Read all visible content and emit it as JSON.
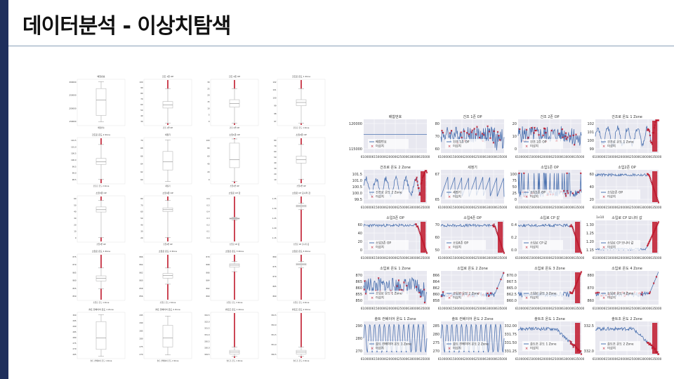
{
  "slide": {
    "title": "데이터분석 - 이상치탐색",
    "accent_color": "#1f2f5c",
    "rule_color": "#8aa0b8"
  },
  "colors": {
    "plot_bg": "#e8e8f0",
    "line": "#4c72b0",
    "outlier": "#c0182b",
    "box": "#bbbbbb"
  },
  "legend_labels": {
    "outlier": "이상치"
  },
  "boxplots": {
    "rows": [
      [
        {
          "title": "배합번호",
          "xlabel": "배합번호",
          "yticks": [
            "1300000",
            "1250000",
            "1200000",
            "1150000"
          ],
          "q": [
            0.08,
            0.22,
            0.55,
            0.8,
            0.95
          ],
          "tail": false
        },
        {
          "title": "건조 1존 OP",
          "xlabel": "건조 1존 OP",
          "yticks": [
            "100",
            "90",
            "80",
            "70",
            "60",
            "50",
            "40",
            "30"
          ],
          "q": [
            0.05,
            0.38,
            0.45,
            0.52,
            0.8
          ],
          "tail": true
        },
        {
          "title": "건조 2존 OP",
          "xlabel": "건조 2존 OP",
          "yticks": [
            "30",
            "25",
            "20",
            "15",
            "10",
            "5",
            "0"
          ],
          "q": [
            0.05,
            0.4,
            0.48,
            0.56,
            0.8
          ],
          "tail": true
        },
        {
          "title": "건조로 온도 1 Zone",
          "xlabel": "건조로 온도 1 Zone",
          "yticks": [
            "102",
            "101",
            "100",
            "99",
            "98",
            "97"
          ],
          "q": [
            0.05,
            0.43,
            0.5,
            0.56,
            0.8
          ],
          "tail": true
        }
      ],
      [
        {
          "title": "건조로 온도 2 Zone",
          "xlabel": "건조로 온도 2 Zone",
          "yticks": [
            "101.5",
            "101.0",
            "100.5",
            "100.0",
            "99.5",
            "99.0",
            "98.5"
          ],
          "q": [
            0.1,
            0.42,
            0.48,
            0.55,
            0.85
          ],
          "tail": true
        },
        {
          "title": "세정기",
          "xlabel": "세정기",
          "yticks": [
            "70",
            "68",
            "66",
            "64",
            "62",
            "60"
          ],
          "q": [
            0.05,
            0.3,
            0.48,
            0.7,
            0.95
          ],
          "tail": false
        },
        {
          "title": "소입1존 OP",
          "xlabel": "소입1존 OP",
          "yticks": [
            "100",
            "80",
            "60",
            "40",
            "20",
            "0"
          ],
          "q": [
            0.05,
            0.35,
            0.52,
            0.88,
            0.97
          ],
          "tail": true
        },
        {
          "title": "소입2존 OP",
          "xlabel": "소입2존 OP",
          "yticks": [
            "80",
            "70",
            "60",
            "50",
            "40",
            "30",
            "20",
            "10"
          ],
          "q": [
            0.1,
            0.45,
            0.52,
            0.6,
            0.85
          ],
          "tail": true
        }
      ],
      [
        {
          "title": "소입3존 OP",
          "xlabel": "소입3존 OP",
          "yticks": [
            "60",
            "50",
            "40",
            "30",
            "20",
            "10",
            "0"
          ],
          "q": [
            0.1,
            0.65,
            0.7,
            0.76,
            0.9
          ],
          "tail": true
        },
        {
          "title": "소입4존 OP",
          "xlabel": "소입4존 OP",
          "yticks": [
            "80",
            "70",
            "60",
            "50",
            "40",
            "30",
            "20"
          ],
          "q": [
            0.1,
            0.66,
            0.7,
            0.74,
            0.9
          ],
          "tail": true
        },
        {
          "title": "소입로 CP 값",
          "xlabel": "소입로 CP 값",
          "yticks": [
            "0.6",
            "0.5",
            "0.4",
            "0.3",
            "0.2",
            "0.1",
            "0.0"
          ],
          "q": [
            0.48,
            0.5,
            0.51,
            0.52,
            0.54
          ],
          "tail": true
        },
        {
          "title": "소입로 CP 모니터 값",
          "xlabel": "소입로 CP 모니터 값",
          "yticks": [
            "1.35",
            "1.30",
            "1.25",
            "1.20",
            "1.15"
          ],
          "q": [
            0.7,
            0.76,
            0.78,
            0.8,
            0.84
          ],
          "tail": true
        }
      ],
      [
        {
          "title": "소입로 온도 1 Zone",
          "xlabel": "소입로 온도 1 Zone",
          "yticks": [
            "875",
            "870",
            "865",
            "860",
            "855",
            "850"
          ],
          "q": [
            0.25,
            0.42,
            0.48,
            0.53,
            0.7
          ],
          "tail": true
        },
        {
          "title": "소입로 온도 2 Zone",
          "xlabel": "소입로 온도 2 Zone",
          "yticks": [
            "866",
            "864",
            "862",
            "860",
            "858",
            "856"
          ],
          "q": [
            0.35,
            0.48,
            0.54,
            0.58,
            0.7
          ],
          "tail": true
        },
        {
          "title": "소입로 온도 3 Zone",
          "xlabel": "소입로 온도 3 Zone",
          "yticks": [
            "870",
            "868",
            "866",
            "864",
            "862",
            "860"
          ],
          "q": [
            0.62,
            0.72,
            0.76,
            0.79,
            0.84
          ],
          "tail": true
        },
        {
          "title": "소입로 온도 4 Zone",
          "xlabel": "소입로 온도 4 Zone",
          "yticks": [
            "880",
            "875",
            "870",
            "865",
            "860"
          ],
          "q": [
            0.7,
            0.76,
            0.78,
            0.8,
            0.84
          ],
          "tail": true
        }
      ],
      [
        {
          "title": "솔트 컨베이어 온도 1 Zone",
          "xlabel": "솔트 컨베이어 온도 1 Zone",
          "yticks": [
            "300",
            "295",
            "290",
            "285",
            "280",
            "275",
            "270",
            "265"
          ],
          "q": [
            0.05,
            0.2,
            0.45,
            0.8,
            0.95
          ],
          "tail": false
        },
        {
          "title": "솔트 컨베이어 온도 2 Zone",
          "xlabel": "솔트 컨베이어 온도 2 Zone",
          "yticks": [
            "295",
            "290",
            "285",
            "280",
            "275",
            "270"
          ],
          "q": [
            0.08,
            0.25,
            0.45,
            0.72,
            0.92
          ],
          "tail": false
        },
        {
          "title": "솔트조 온도 1 Zone",
          "xlabel": "솔트조 온도 1 Zone",
          "yticks": [
            "332.5",
            "332.0",
            "331.5",
            "331.0",
            "330.5",
            "330.0",
            "329.5"
          ],
          "q": [
            0.05,
            0.1,
            0.14,
            0.18,
            0.25
          ],
          "tail": true
        },
        {
          "title": "솔트조 온도 2 Zone",
          "xlabel": "솔트조 온도 2 Zone",
          "yticks": [
            "332.5",
            "332.0",
            "331.5",
            "331.0",
            "330.5"
          ],
          "q": [
            0.05,
            0.1,
            0.14,
            0.18,
            0.25
          ],
          "tail": true
        }
      ]
    ]
  },
  "timeseries": {
    "xticks": [
      "6100006150000620000625000630000635000"
    ],
    "rows": [
      [
        {
          "title": "배합번호",
          "legend": "배합번호",
          "offset": "",
          "yticks": [
            "120000",
            "115000"
          ],
          "kind": "flat",
          "outliers": "none"
        },
        {
          "title": "건조 1존 OP",
          "legend": "건조 1존 OP",
          "offset": "",
          "yticks": [
            "80",
            "70",
            "60"
          ],
          "kind": "noisy",
          "outliers": "scatter"
        },
        {
          "title": "건조 2존 OP",
          "legend": "건조 2존 OP",
          "offset": "",
          "yticks": [
            "20",
            "10",
            "0"
          ],
          "kind": "noisy",
          "outliers": "scatter"
        },
        {
          "title": "건조로 온도 1 Zone",
          "legend": "건조로 온도 1 Zone",
          "offset": "",
          "yticks": [
            "102",
            "101",
            "100",
            "99"
          ],
          "kind": "wave",
          "outliers": "tail"
        }
      ],
      [
        {
          "title": "건조로 온도 2 Zone",
          "legend": "건조로 온도 2 Zone",
          "offset": "",
          "yticks": [
            "101.5",
            "101.0",
            "100.5",
            "100.0",
            "99.5"
          ],
          "kind": "wave",
          "outliers": "tail"
        },
        {
          "title": "세정기",
          "legend": "세정기",
          "offset": "",
          "yticks": [
            "67",
            "65"
          ],
          "kind": "saw",
          "outliers": "none"
        },
        {
          "title": "소입1존 OP",
          "legend": "소입1존 OP",
          "offset": "",
          "yticks": [
            "100",
            "75",
            "50",
            "25",
            "0"
          ],
          "kind": "spiky",
          "outliers": "scatter"
        },
        {
          "title": "소입2존 OP",
          "legend": "소입2존 OP",
          "offset": "",
          "yticks": [
            "60",
            "40",
            "20"
          ],
          "kind": "high",
          "outliers": "tail"
        }
      ],
      [
        {
          "title": "소입3존 OP",
          "legend": "소입3존 OP",
          "offset": "",
          "yticks": [
            "60",
            "40",
            "20",
            "0"
          ],
          "kind": "high",
          "outliers": "tail"
        },
        {
          "title": "소입4존 OP",
          "legend": "소입4존 OP",
          "offset": "",
          "yticks": [
            "70",
            "60",
            "50"
          ],
          "kind": "high",
          "outliers": "tail"
        },
        {
          "title": "소입로 CP 값",
          "legend": "소입로 CP 값",
          "offset": "",
          "yticks": [
            "0.4",
            "0.2",
            "0.0"
          ],
          "kind": "high",
          "outliers": "tail"
        },
        {
          "title": "소입로 CP 모니터 값",
          "legend": "소입로 CP 모니터 값",
          "offset": "1e10",
          "yticks": [
            "1.30",
            "1.25",
            "1.20",
            "1.15"
          ],
          "kind": "rise",
          "outliers": "tail"
        }
      ],
      [
        {
          "title": "소입로 온도 1 Zone",
          "legend": "소입로 온도 1 Zone",
          "offset": "",
          "yticks": [
            "870",
            "865",
            "860",
            "855",
            "850"
          ],
          "kind": "noisy",
          "outliers": "scatter"
        },
        {
          "title": "소입로 온도 2 Zone",
          "legend": "소입로 온도 2 Zone",
          "offset": "",
          "yticks": [
            "866",
            "864",
            "862",
            "860",
            "858"
          ],
          "kind": "lowrise",
          "outliers": "scatter"
        },
        {
          "title": "소입로 온도 3 Zone",
          "legend": "소입로 온도 3 Zone",
          "offset": "",
          "yticks": [
            "870.0",
            "867.5",
            "865.0",
            "862.5",
            "860.0"
          ],
          "kind": "lowrise",
          "outliers": "tail"
        },
        {
          "title": "소입로 온도 4 Zone",
          "legend": "소입로 온도 4 Zone",
          "offset": "",
          "yticks": [
            "880",
            "870",
            "860"
          ],
          "kind": "lowrise",
          "outliers": "scatter"
        }
      ],
      [
        {
          "title": "솔트 컨베이어 온도 1 Zone",
          "legend": "솔트 컨베이어 온도 1 Zone",
          "offset": "",
          "yticks": [
            "290",
            "280",
            "270"
          ],
          "kind": "sine",
          "outliers": "none"
        },
        {
          "title": "솔트 컨베이어 온도 2 Zone",
          "legend": "솔트 컨베이어 온도 2 Zone",
          "offset": "",
          "yticks": [
            "285",
            "280",
            "275",
            "270"
          ],
          "kind": "sine",
          "outliers": "none"
        },
        {
          "title": "솔트조 온도 1 Zone",
          "legend": "솔트조 온도 1 Zone",
          "offset": "",
          "yticks": [
            "332.00",
            "331.75",
            "331.50",
            "331.25"
          ],
          "kind": "fall",
          "outliers": "tail"
        },
        {
          "title": "솔트조 온도 2 Zone",
          "legend": "솔트조 온도 2 Zone",
          "offset": "",
          "yticks": [
            "332.5",
            "332.0"
          ],
          "kind": "fall",
          "outliers": "tail"
        }
      ]
    ]
  }
}
